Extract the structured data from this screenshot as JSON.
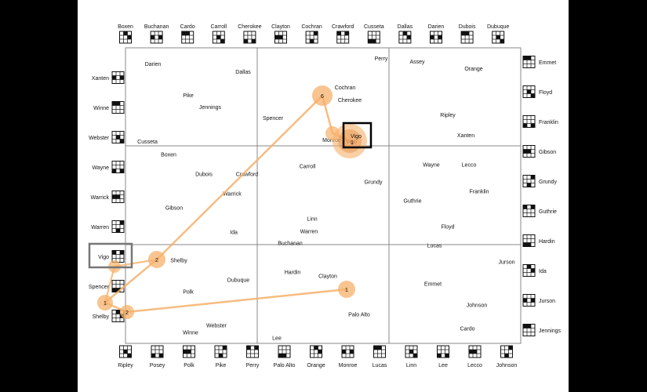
{
  "top_items": [
    "Boxen",
    "Buchanan",
    "Cardo",
    "Carroll",
    "Cherokee",
    "Clayton",
    "Cochran",
    "Crawford",
    "Cusseta",
    "Dallas",
    "Darien",
    "Dubois",
    "Dubuque"
  ],
  "bottom_items": [
    "Ripley",
    "Posey",
    "Polk",
    "Pike",
    "Perry",
    "Palo Alto",
    "Orange",
    "Monroe",
    "Lucas",
    "Linn",
    "Lee",
    "Lecco",
    "Johnson"
  ],
  "left_items": [
    "Xanten",
    "Winne",
    "Webster",
    "Wayne",
    "Warrick",
    "Warren",
    "Vigo",
    "Spencer",
    "Shelby"
  ],
  "right_items": [
    "Emmet",
    "Floyd",
    "Franklin",
    "Gibson",
    "Grundy",
    "Guthrie",
    "Hardin",
    "Ida",
    "Jurson",
    "Jennings"
  ],
  "cells": [
    [
      {
        "t": "Darien"
      },
      {
        "t": "Dallas"
      },
      {
        "t": "Pike"
      },
      {
        "t": "Jennings"
      },
      {
        "t": "Cusseta"
      }
    ],
    [
      {
        "t": "Perry"
      },
      {
        "t": "Cochran"
      },
      {
        "t": "Cherokee"
      },
      {
        "t": "Spencer"
      },
      {
        "t": "Monroe"
      },
      {
        "t": "Vigo"
      }
    ],
    [
      {
        "t": "Assey"
      },
      {
        "t": "Orange"
      },
      {
        "t": "Ripley"
      },
      {
        "t": "Xanten"
      }
    ],
    [
      {
        "t": "Boxen"
      },
      {
        "t": "Dubois"
      },
      {
        "t": "Crawford"
      },
      {
        "t": "Warrick"
      },
      {
        "t": "Gibson"
      },
      {
        "t": "Ida"
      }
    ],
    [
      {
        "t": "Carroll"
      },
      {
        "t": "Grundy"
      },
      {
        "t": "Linn"
      },
      {
        "t": "Warren"
      },
      {
        "t": "Buchanan"
      }
    ],
    [
      {
        "t": "Wayne"
      },
      {
        "t": "Lecco"
      },
      {
        "t": "Franklin"
      },
      {
        "t": "Guthrie"
      },
      {
        "t": "Floyd"
      },
      {
        "t": "Lucas"
      }
    ],
    [
      {
        "t": "Shelby"
      },
      {
        "t": "Dubuque"
      },
      {
        "t": "Polk"
      },
      {
        "t": "Webster"
      },
      {
        "t": "Winne"
      }
    ],
    [
      {
        "t": "Hardin"
      },
      {
        "t": "Clayton"
      },
      {
        "t": "Palo Alto"
      },
      {
        "t": "Lee"
      }
    ],
    [
      {
        "t": "Jurson"
      },
      {
        "t": "Emmet"
      },
      {
        "t": "Johnson"
      },
      {
        "t": "Cardo"
      }
    ]
  ],
  "markers": [
    {
      "num": "6"
    },
    {
      "num": "2"
    },
    {
      "num": "1"
    },
    {
      "num": "2"
    },
    {
      "num": "1"
    }
  ],
  "highlight_label": "Vigo",
  "highlight_num": "1",
  "colors": {
    "accent": "#f6b06a",
    "accent_dark": "#e8914a",
    "grid": "#888888",
    "frame": "#333333"
  }
}
